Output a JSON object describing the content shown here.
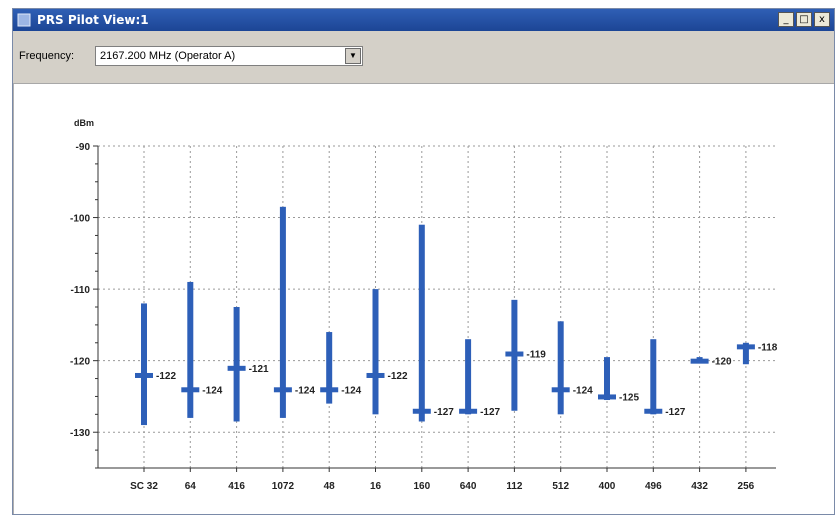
{
  "window": {
    "title": "PRS Pilot View:1",
    "minimize": "_",
    "restore": "□",
    "close": "x"
  },
  "toolbar": {
    "frequency_label": "Frequency:",
    "frequency_value": "2167.200 MHz (Operator A)"
  },
  "colors": {
    "bar": "#2d5fb8",
    "titlebar": "#2350a5"
  },
  "chart_data": {
    "type": "bar",
    "ylabel": "dBm",
    "ylim": [
      -135,
      -90
    ],
    "yticks": [
      -90,
      -100,
      -110,
      -120,
      -130
    ],
    "grid": true,
    "categories": [
      "SC 32",
      "64",
      "416",
      "1072",
      "48",
      "16",
      "160",
      "640",
      "112",
      "512",
      "400",
      "496",
      "432",
      "256"
    ],
    "series": [
      {
        "values_max": [
          -112,
          -109,
          -112.5,
          -98.5,
          -116,
          -110,
          -101,
          -117,
          -111.5,
          -114.5,
          -119.5,
          -117,
          -119.5,
          -117.5
        ]
      },
      {
        "values_min": [
          -129,
          -128,
          -128.5,
          -128,
          -126,
          -127.5,
          -128.5,
          -127.5,
          -127,
          -127.5,
          -125.5,
          -127.5,
          -120,
          -120.5
        ]
      },
      {
        "values_avg": [
          -122,
          -124,
          -121,
          -124,
          -124,
          -122,
          -127,
          -127,
          -119,
          -124,
          -125,
          -127,
          -120,
          -118
        ]
      }
    ],
    "labels": [
      "-122",
      "-124",
      "-121",
      "-124",
      "-124",
      "-122",
      "-127",
      "-127",
      "-119",
      "-124",
      "-125",
      "-127",
      "-120",
      "-118"
    ]
  }
}
